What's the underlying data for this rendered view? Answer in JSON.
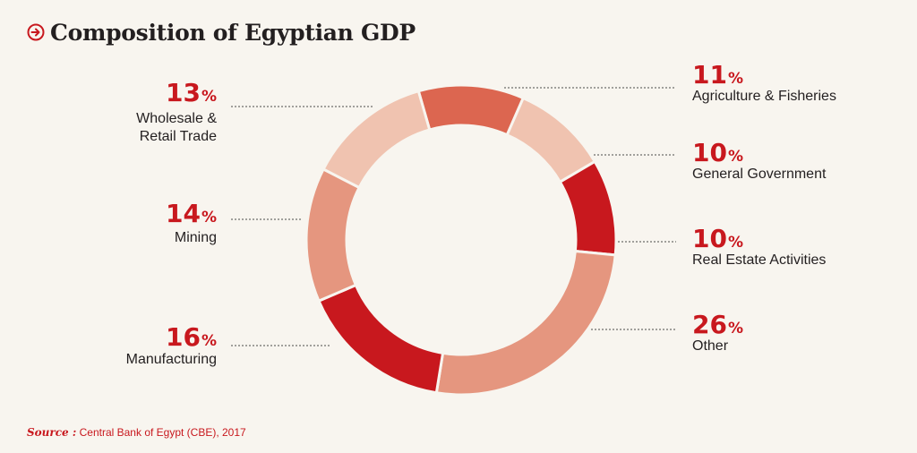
{
  "title": "Composition of Egyptian GDP",
  "title_icon": "arrow-circle-right-icon",
  "colors": {
    "accent": "#c8181e",
    "background": "#f8f5ef"
  },
  "source": {
    "label": "Source :",
    "text": "Central Bank of Egypt (CBE), 2017"
  },
  "chart_data": {
    "type": "pie",
    "variant": "donut",
    "title": "Composition of Egyptian GDP",
    "unit": "%",
    "slices": [
      {
        "label": "Agriculture & Fisheries",
        "value": 11,
        "color": "#dc6650"
      },
      {
        "label": "General Government",
        "value": 10,
        "color": "#f0c3b0"
      },
      {
        "label": "Real Estate Activities",
        "value": 10,
        "color": "#c8181e"
      },
      {
        "label": "Other",
        "value": 26,
        "color": "#e5967f"
      },
      {
        "label": "Manufacturing",
        "value": 16,
        "color": "#c8181e"
      },
      {
        "label": "Mining",
        "value": 14,
        "color": "#e5967f"
      },
      {
        "label": "Wholesale & Retail Trade",
        "value": 13,
        "color": "#f0c3b0"
      }
    ]
  }
}
